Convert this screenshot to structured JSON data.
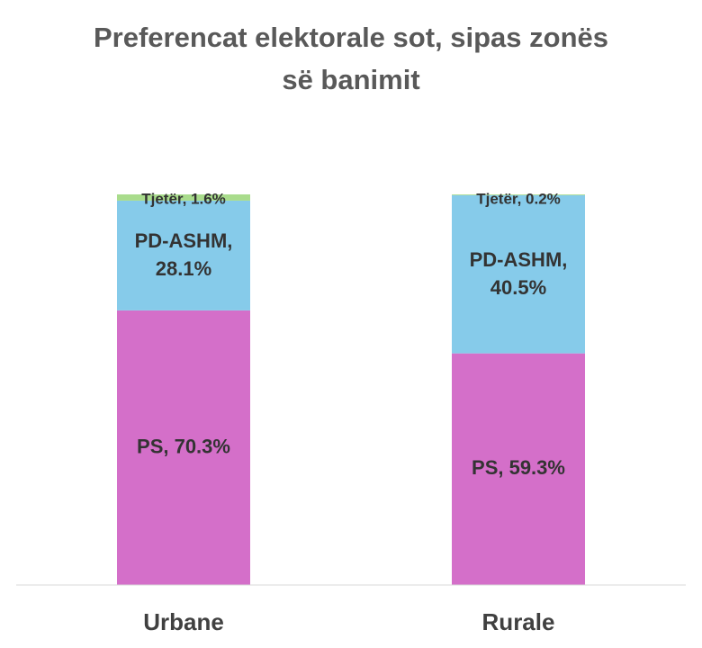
{
  "chart_data": {
    "type": "stacked_bar",
    "title": "Preferencat elektorale sot, sipas zonës së banimit",
    "categories": [
      "Urbane",
      "Rurale"
    ],
    "series": [
      {
        "name": "PS",
        "color": "#d46fc9",
        "values": [
          70.3,
          59.3
        ],
        "value_labels": [
          "PS, 70.3%",
          "PS, 59.3%"
        ]
      },
      {
        "name": "PD-ASHM",
        "color": "#86cbea",
        "values": [
          28.1,
          40.5
        ],
        "value_labels": [
          "PD-ASHM, 28.1%",
          "PD-ASHM, 40.5%"
        ]
      },
      {
        "name": "Tjetër",
        "color": "#a9dc8c",
        "values": [
          1.6,
          0.2
        ],
        "value_labels": [
          "Tjetër, 1.6%",
          "Tjetër, 0.2%"
        ]
      }
    ]
  }
}
